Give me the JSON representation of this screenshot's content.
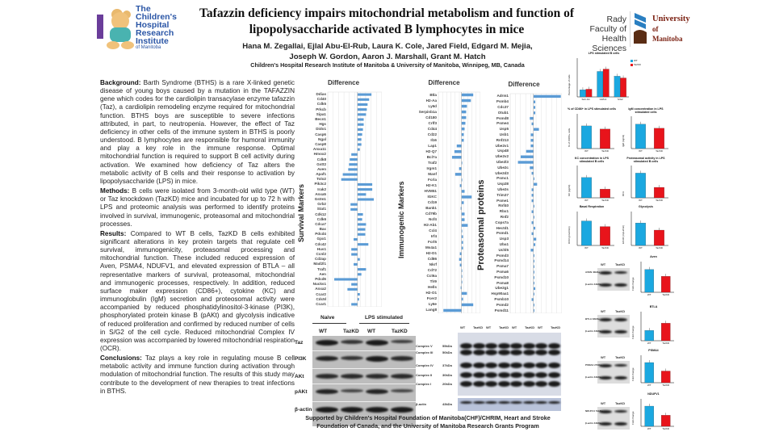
{
  "header": {
    "title": "Tafazzin deficiency impairs mitochondrial metabolism and function of lipopolysaccharide activated B lymphocytes in mice",
    "authors_line1": "Hana M. Zegallai, Ejlal Abu-El-Rub, Laura K. Cole, Jared Field, Edgard M. Mejia,",
    "authors_line2": "Joseph W. Gordon, Aaron J. Marshall, Grant M. Hatch",
    "affiliation": "Children's Hospital Research Institute of Manitoba & University of Manitoba, Winnipeg, MB, Canada",
    "logo_left": {
      "line1": "The",
      "line2": "Children's",
      "line3": "Hospital",
      "line4": "Research",
      "line5": "Institute",
      "line6": "of Manitoba"
    },
    "logo_right": {
      "rady": "Rady Faculty of Health Sciences",
      "uofm1": "University",
      "uofm2": "of Manitoba"
    }
  },
  "sections": [
    {
      "heading": "Background:",
      "body": "Barth Syndrome (BTHS) is a rare X-linked genetic disease of young boys caused by a mutation in the TAFAZZIN gene which codes for the cardiolipin transacylase enzyme tafazzin (Taz), a cardiolipin remodeling enzyme required for mitochondrial function. BTHS boys are susceptible to severe infections attributed, in part, to neutropenia. However, the effect of Taz deficiency in other cells of the immune system in BTHS is poorly understood. B lymphocytes are responsible for humoral immunity and play a key role in the immune response. Optimal mitochondrial function is required to support B cell activity during activation. We examined how deficiency of Taz alters the metabolic activity of B cells and their response to activation by lipopolysaccharide (LPS) in mice."
    },
    {
      "heading": "Methods:",
      "body": "B cells were isolated from 3-month-old wild type (WT) or Taz knockdown (TazKD) mice and incubated for up to 72 h with LPS and proteomic analysis was performed to identify proteins involved in survival, immunogenic, proteasomal and mitochondrial processes."
    },
    {
      "heading": "Results:",
      "body": "Compared to WT B cells, TazKD B cells exhibited significant alterations in key protein targets that regulate cell survival, immunogenicity, proteasomal processing and mitochondrial function. These included reduced expression of Aven, PSMA4, NDUFV1, and elevated expression of BTLA – all representative markers of survival, proteasomal, mitochondrial and immunogenic processes, respectively. In addition, reduced surface maker expression (CD86+), cytokine (KC) and immunoglobulin (IgM) secretion and proteosomal activity were accompanied by reduced phosphatidylinositol-3-kinase (PI3K), phosphorylated protein kinase B (pAKt) and glycolysis indicative of reduced proliferation and confirmed by reduced number of cells in S/G2 of the cell cycle. Reduced mitochondrial Complex IV expression was accompanied by lowered mitochondrial respiration (OCR)."
    },
    {
      "heading": "Conclusions:",
      "body": "Taz plays a key role in regulating mouse B cell metabolic activity and immune function during activation through modulation of mitochondrial function. The results of this study may contribute to the development of new therapies to treat infections in BTHS."
    }
  ],
  "colors": {
    "wt": "#1ba8e0",
    "tazkd": "#e8141b",
    "diff_bar": "#5b9bd5",
    "logo_blue": "#2b56a6",
    "uofm_red": "#7a1f10"
  },
  "blot_left": {
    "group1": "Naive",
    "group2": "LPS stimulated",
    "lanes": [
      "WT",
      "TazKD",
      "WT",
      "TazKD"
    ],
    "rows": [
      "Taz",
      "PI3K",
      "AKt",
      "pAKt",
      "β-actin"
    ]
  },
  "blot_mid": {
    "lanes": [
      "WT",
      "TazKD",
      "WT",
      "TazKD",
      "WT",
      "TazKD",
      "WT",
      "TazKD"
    ],
    "rows": [
      {
        "name": "Complex V",
        "kda": "55kDa"
      },
      {
        "name": "Complex III",
        "kda": "50kDa"
      },
      {
        "name": "Complex IV",
        "kda": "37kDa"
      },
      {
        "name": "Complex II",
        "kda": "30kDa"
      },
      {
        "name": "Complex I",
        "kda": "20kDa"
      },
      {
        "name": "β-actin",
        "kda": "43kDa"
      }
    ]
  },
  "blots_right": [
    {
      "lanes": [
        "WT",
        "TazKD"
      ],
      "target": "AVEN 40kDa",
      "control": "β-actin 43kDa"
    },
    {
      "lanes": [
        "WT",
        "TazKD"
      ],
      "target": "BTLA 33kDa",
      "control": "β-actin 43kDa"
    },
    {
      "lanes": [
        "WT",
        "TazKD"
      ],
      "target": "PSMA4 27kDa",
      "control": "β-actin 43kDa"
    },
    {
      "lanes": [
        "WT",
        "TazKD"
      ],
      "target": "NDUFV1 51kDa",
      "control": "β-actin 43kDa"
    }
  ],
  "support": "Supported by Children's Hospital Foundation of Manitoba(CHF)/CHRIM, Heart and Stroke Foundation of Canada, and the University of Manitoba Research Grants Program",
  "chart_data": [
    {
      "id": "survival",
      "type": "bar",
      "orientation": "horizontal",
      "title": "Difference",
      "group_label": "Survival Markers",
      "categories": [
        "Ddias",
        "Cd40",
        "Cdk5",
        "Prkcb",
        "Sipa1",
        "Becn1",
        "Hgs",
        "Dido1",
        "Casp6",
        "Ngal",
        "Casp8",
        "Anxa11",
        "Hmox2",
        "Cdk8",
        "Gstt2",
        "Aven",
        "Apaf1",
        "Tolo2",
        "Pik3c2",
        "Irak2",
        "Anxa5",
        "Gstm1",
        "Grb2",
        "Stat1",
        "Cdk12",
        "Cdk6",
        "Cdca7",
        "Bax",
        "Pdcd4",
        "Gpx1",
        "Cdc42",
        "Hus1",
        "Ccnl2",
        "Cd2ap",
        "Mad2l1",
        "Traf1",
        "Aen",
        "Pdcd6",
        "Nucks1",
        "Anxa2",
        "Ccar2",
        "Cdc5l",
        "Ccar1"
      ],
      "values": [
        18,
        15,
        13,
        12,
        11,
        8,
        8,
        7,
        6,
        5,
        5,
        3,
        -8,
        -10,
        -11,
        -12,
        -19,
        -21,
        19,
        19,
        11,
        21,
        -9,
        -9,
        7,
        6,
        11,
        10,
        10,
        -5,
        14,
        -8,
        -8,
        3,
        -5,
        11,
        5,
        -30,
        -8,
        -13,
        3,
        2,
        -8
      ]
    },
    {
      "id": "immunogenic",
      "type": "bar",
      "orientation": "horizontal",
      "title": "Difference",
      "group_label": "Immunogenic Markers",
      "categories": [
        "Btla",
        "H2-Aa",
        "Ly6d",
        "Serpinb1a",
        "Cd180",
        "Crlf3",
        "Cd44",
        "Cd22",
        "Il16",
        "Lap1",
        "H2-Q7",
        "Bcl7a",
        "Traf2",
        "Irgm1",
        "Manf",
        "Fcrla",
        "H2-K1",
        "HVM51",
        "IGKC",
        "Cd19",
        "Bank1",
        "Cd79b",
        "Ncf4",
        "H2-Ab1",
        "Ccl4",
        "Irf4",
        "Fcrl5",
        "Ms4a1",
        "H2-D1",
        "Cd86",
        "Nkrf",
        "Cd72",
        "Cct6a",
        "Tlr9",
        "Hells",
        "H2-O1",
        "Fcer2",
        "Ly6e",
        "Lang8"
      ],
      "values": [
        15,
        12,
        7,
        6,
        6,
        5,
        4,
        3,
        3,
        -6,
        -9,
        -12,
        1,
        -3,
        -8,
        1,
        -2,
        4,
        13,
        3,
        -1,
        4,
        4,
        8,
        1,
        2,
        2,
        2,
        -2,
        -3,
        -2,
        1,
        1,
        1,
        -1,
        7,
        2,
        15,
        -23
      ]
    },
    {
      "id": "proteasomal",
      "type": "bar",
      "orientation": "horizontal",
      "title": "Difference",
      "group_label": "Proteasomal proteins",
      "categories": [
        "Adrm1",
        "Psmb4",
        "Cdc37",
        "Otub1",
        "Psmd8",
        "Psme4",
        "Usp5",
        "Usb1",
        "Rnf213",
        "Ube2v1",
        "Usp48",
        "Ube2v2",
        "Ube2l3",
        "Ube2c",
        "Ube2d3",
        "Psmc1",
        "Usp28",
        "Ube2s",
        "Trim37",
        "Psme1",
        "Rnf40",
        "Rbx1",
        "Rnf2",
        "Cops7a",
        "Hectd1",
        "Psmd1",
        "Usp3",
        "Uba1",
        "Uchl5",
        "Psmd3",
        "Psmd14",
        "Psma7",
        "Psma6",
        "Psmd10",
        "Psma8",
        "Ube2g1",
        "Hsp90aa1",
        "Psmb10",
        "Psmd2",
        "Psmd11"
      ],
      "values": [
        30,
        2,
        2,
        2,
        -4,
        -2,
        6,
        -3,
        -3,
        -3,
        -8,
        -14,
        -17,
        -4,
        -2,
        1,
        4,
        -2,
        -2,
        -2,
        1,
        -2,
        1,
        -2,
        2,
        -2,
        3,
        2,
        -3,
        1,
        1,
        1,
        1,
        1,
        1,
        2,
        1,
        -2,
        1,
        1
      ]
    },
    {
      "id": "cell_cycle",
      "type": "bar",
      "title": "LPS stimulated B cells",
      "ylabel": "Percentage of cells",
      "categories": [
        "Sub-G1",
        "G0/G1",
        "S/G2"
      ],
      "series": [
        {
          "name": "WT",
          "values": [
            12,
            43,
            35
          ]
        },
        {
          "name": "TazKD",
          "values": [
            13,
            47,
            32
          ]
        }
      ],
      "ylim": [
        0,
        60
      ],
      "legend": "top-right"
    },
    {
      "id": "cd86",
      "type": "bar",
      "title": "% of CD86+ in LPS stimulated cells",
      "ylabel": "% of CD86+ cells",
      "categories": [
        "WT",
        "TazKD"
      ],
      "values": [
        72,
        62
      ],
      "ylim": [
        0,
        100
      ]
    },
    {
      "id": "igm",
      "type": "bar",
      "title": "IgM concentration in LPS stimulated cells",
      "ylabel": "IgM (ng/ml)",
      "categories": [
        "WT",
        "TazKD"
      ],
      "values": [
        21000,
        17500
      ],
      "ylim": [
        0,
        25000
      ]
    },
    {
      "id": "kc",
      "type": "bar",
      "title": "KC concentration in LPS stimulated B cells",
      "ylabel": "KC (pg/ml)",
      "categories": [
        "WT",
        "TazKD"
      ],
      "values": [
        210,
        90
      ],
      "ylim": [
        0,
        300
      ]
    },
    {
      "id": "proteasome",
      "type": "bar",
      "title": "Proteasomal activity in LPS stimulated B cells",
      "ylabel": "RFU",
      "categories": [
        "WT",
        "TazKD"
      ],
      "values": [
        8500,
        3600
      ],
      "ylim": [
        0,
        10000
      ]
    },
    {
      "id": "basal_resp",
      "type": "bar",
      "title": "Basal Respiration",
      "ylabel": "OCR (pmol/min)",
      "categories": [
        "WT",
        "TazKD"
      ],
      "values": [
        240,
        185
      ],
      "ylim": [
        0,
        300
      ]
    },
    {
      "id": "glycolysis",
      "type": "bar",
      "title": "Glycolysis",
      "ylabel": "ECAR (mpH/min)",
      "categories": [
        "WT",
        "TazKD"
      ],
      "values": [
        6.6,
        4.5
      ],
      "ylim": [
        0,
        9
      ]
    },
    {
      "id": "aven",
      "type": "bar",
      "title": "Aven",
      "ylabel": "Fold change",
      "categories": [
        "WT",
        "TazKD"
      ],
      "values": [
        1,
        0.7
      ],
      "ylim": [
        0,
        1.2
      ]
    },
    {
      "id": "btla",
      "type": "bar",
      "title": "BTLA",
      "ylabel": "Fold change",
      "categories": [
        "WT",
        "TazKD"
      ],
      "values": [
        1,
        1.7
      ],
      "ylim": [
        0,
        2.5
      ]
    },
    {
      "id": "psma4",
      "type": "bar",
      "title": "PSMA4",
      "ylabel": "Fold change",
      "categories": [
        "WT",
        "TazKD"
      ],
      "values": [
        1,
        0.58
      ],
      "ylim": [
        0,
        1.2
      ]
    },
    {
      "id": "ndufv1",
      "type": "bar",
      "title": "NDUFV1",
      "ylabel": "Fold change",
      "categories": [
        "WT",
        "TazKD"
      ],
      "values": [
        1,
        0.55
      ],
      "ylim": [
        0,
        1.2
      ]
    }
  ]
}
